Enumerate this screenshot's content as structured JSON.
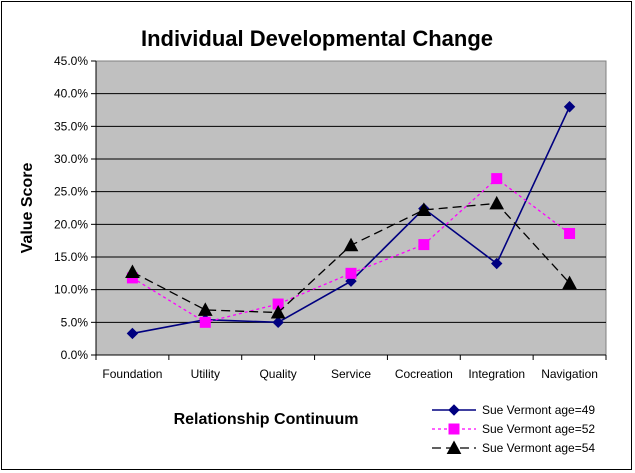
{
  "chart_data": {
    "type": "line",
    "title": "Individual Developmental Change",
    "xlabel": "Relationship Continuum",
    "ylabel": "Value Score",
    "categories": [
      "Foundation",
      "Utility",
      "Quality",
      "Service",
      "Cocreation",
      "Integration",
      "Navigation"
    ],
    "ylim": [
      0,
      45
    ],
    "yticks": [
      "0.0%",
      "5.0%",
      "10.0%",
      "15.0%",
      "20.0%",
      "25.0%",
      "30.0%",
      "35.0%",
      "40.0%",
      "45.0%"
    ],
    "grid": true,
    "legend_position": "bottom-right",
    "plot_background": "#c0c0c0",
    "series": [
      {
        "name": "Sue Vermont age=49",
        "values": [
          3.3,
          5.4,
          5.0,
          11.3,
          22.4,
          14.0,
          38.0
        ],
        "color": "#000080",
        "marker": "diamond",
        "line": "solid"
      },
      {
        "name": "Sue Vermont age=52",
        "values": [
          11.8,
          5.0,
          7.8,
          12.5,
          16.9,
          27.0,
          18.6
        ],
        "color": "#ff00ff",
        "marker": "square",
        "line": "dotted"
      },
      {
        "name": "Sue Vermont age=54",
        "values": [
          12.7,
          6.9,
          6.5,
          16.8,
          22.2,
          23.2,
          11.0
        ],
        "color": "#000000",
        "marker": "triangle",
        "line": "dashed"
      }
    ]
  }
}
